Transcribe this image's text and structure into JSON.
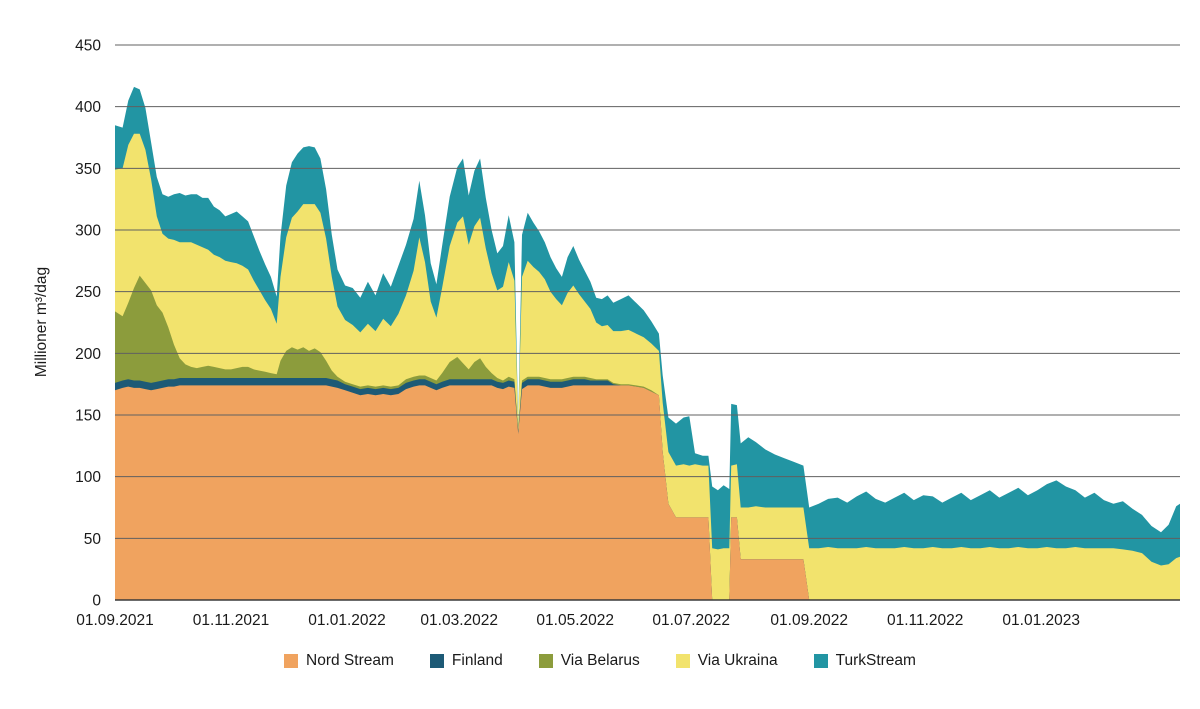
{
  "chart": {
    "y_axis_label": "Millioner m³/dag",
    "gridline_color": "#606060",
    "baseline_color": "#3a3a3a",
    "text_color": "#1a1a1a"
  },
  "chart_data": {
    "type": "area",
    "stacked": true,
    "title": "",
    "xlabel": "",
    "ylabel": "Millioner m³/dag",
    "ylim": [
      0,
      450
    ],
    "y_tick_step": 50,
    "grid": true,
    "legend_position": "bottom",
    "series_meta": [
      {
        "name": "Nord Stream",
        "color": "#f0a35f"
      },
      {
        "name": "Finland",
        "color": "#1d5a76"
      },
      {
        "name": "Via Belarus",
        "color": "#8c9c3c"
      },
      {
        "name": "Via Ukraina",
        "color": "#f2e36d"
      },
      {
        "name": "TurkStream",
        "color": "#2295a3"
      }
    ],
    "x_ticks": [
      {
        "date": "2021-09-01",
        "label": "01.09.2021"
      },
      {
        "date": "2021-11-01",
        "label": "01.11.2021"
      },
      {
        "date": "2022-01-01",
        "label": "01.01.2022"
      },
      {
        "date": "2022-03-01",
        "label": "01.03.2022"
      },
      {
        "date": "2022-05-01",
        "label": "01.05.2022"
      },
      {
        "date": "2022-07-01",
        "label": "01.07.2022"
      },
      {
        "date": "2022-09-01",
        "label": "01.09.2022"
      },
      {
        "date": "2022-11-01",
        "label": "01.11.2022"
      },
      {
        "date": "2023-01-01",
        "label": "01.01.2023"
      }
    ],
    "columns": [
      "date",
      "nord_stream",
      "finland",
      "via_belarus",
      "via_ukraina",
      "turkstream"
    ],
    "points": [
      [
        "2021-09-01",
        170,
        6,
        58,
        115,
        36
      ],
      [
        "2021-09-05",
        172,
        6,
        52,
        120,
        33
      ],
      [
        "2021-09-08",
        173,
        6,
        62,
        128,
        36
      ],
      [
        "2021-09-11",
        172,
        6,
        75,
        125,
        38
      ],
      [
        "2021-09-14",
        172,
        6,
        85,
        115,
        36
      ],
      [
        "2021-09-17",
        171,
        6,
        80,
        108,
        34
      ],
      [
        "2021-09-20",
        170,
        6,
        75,
        90,
        30
      ],
      [
        "2021-09-23",
        171,
        6,
        62,
        72,
        32
      ],
      [
        "2021-09-26",
        172,
        6,
        55,
        64,
        32
      ],
      [
        "2021-09-29",
        173,
        6,
        42,
        72,
        34
      ],
      [
        "2021-10-02",
        173,
        6,
        28,
        85,
        37
      ],
      [
        "2021-10-05",
        174,
        6,
        16,
        94,
        40
      ],
      [
        "2021-10-08",
        174,
        6,
        11,
        99,
        38
      ],
      [
        "2021-10-11",
        174,
        6,
        9,
        101,
        39
      ],
      [
        "2021-10-14",
        174,
        6,
        8,
        100,
        41
      ],
      [
        "2021-10-17",
        174,
        6,
        9,
        97,
        40
      ],
      [
        "2021-10-20",
        174,
        6,
        10,
        94,
        42
      ],
      [
        "2021-10-23",
        174,
        6,
        9,
        91,
        39
      ],
      [
        "2021-10-26",
        174,
        6,
        8,
        90,
        38
      ],
      [
        "2021-10-29",
        174,
        6,
        7,
        88,
        36
      ],
      [
        "2021-11-01",
        174,
        6,
        7,
        87,
        39
      ],
      [
        "2021-11-04",
        174,
        6,
        8,
        85,
        42
      ],
      [
        "2021-11-07",
        174,
        6,
        9,
        82,
        40
      ],
      [
        "2021-11-10",
        174,
        6,
        9,
        79,
        39
      ],
      [
        "2021-11-13",
        174,
        6,
        7,
        72,
        36
      ],
      [
        "2021-11-16",
        174,
        6,
        6,
        65,
        32
      ],
      [
        "2021-11-19",
        174,
        6,
        5,
        58,
        29
      ],
      [
        "2021-11-22",
        174,
        6,
        4,
        52,
        26
      ],
      [
        "2021-11-25",
        174,
        6,
        3,
        41,
        22
      ],
      [
        "2021-11-27",
        174,
        6,
        14,
        68,
        33
      ],
      [
        "2021-11-30",
        174,
        6,
        22,
        92,
        42
      ],
      [
        "2021-12-03",
        174,
        6,
        25,
        105,
        45
      ],
      [
        "2021-12-06",
        174,
        6,
        23,
        112,
        47
      ],
      [
        "2021-12-09",
        174,
        6,
        25,
        116,
        46
      ],
      [
        "2021-12-12",
        174,
        6,
        22,
        119,
        47
      ],
      [
        "2021-12-15",
        174,
        6,
        24,
        117,
        46
      ],
      [
        "2021-12-18",
        174,
        6,
        21,
        113,
        44
      ],
      [
        "2021-12-21",
        174,
        6,
        14,
        99,
        40
      ],
      [
        "2021-12-24",
        173,
        6,
        7,
        76,
        34
      ],
      [
        "2021-12-27",
        172,
        6,
        3,
        57,
        30
      ],
      [
        "2021-12-31",
        170,
        5,
        2,
        50,
        28
      ],
      [
        "2022-01-04",
        168,
        5,
        2,
        48,
        30
      ],
      [
        "2022-01-08",
        166,
        5,
        2,
        44,
        28
      ],
      [
        "2022-01-12",
        167,
        5,
        2,
        50,
        34
      ],
      [
        "2022-01-16",
        166,
        5,
        2,
        45,
        29
      ],
      [
        "2022-01-20",
        167,
        5,
        2,
        54,
        37
      ],
      [
        "2022-01-24",
        166,
        5,
        2,
        49,
        32
      ],
      [
        "2022-01-28",
        167,
        5,
        2,
        58,
        39
      ],
      [
        "2022-02-01",
        171,
        5,
        3,
        68,
        41
      ],
      [
        "2022-02-05",
        173,
        5,
        3,
        86,
        42
      ],
      [
        "2022-02-08",
        174,
        5,
        3,
        112,
        46
      ],
      [
        "2022-02-11",
        174,
        5,
        3,
        92,
        38
      ],
      [
        "2022-02-14",
        172,
        5,
        3,
        62,
        31
      ],
      [
        "2022-02-17",
        170,
        5,
        3,
        51,
        27
      ],
      [
        "2022-02-20",
        172,
        5,
        7,
        69,
        34
      ],
      [
        "2022-02-24",
        174,
        5,
        14,
        94,
        40
      ],
      [
        "2022-02-28",
        174,
        5,
        18,
        109,
        45
      ],
      [
        "2022-03-03",
        174,
        5,
        13,
        119,
        47
      ],
      [
        "2022-03-06",
        174,
        5,
        8,
        101,
        40
      ],
      [
        "2022-03-09",
        174,
        5,
        14,
        110,
        45
      ],
      [
        "2022-03-12",
        174,
        5,
        17,
        114,
        48
      ],
      [
        "2022-03-15",
        174,
        5,
        10,
        96,
        41
      ],
      [
        "2022-03-18",
        174,
        5,
        5,
        81,
        35
      ],
      [
        "2022-03-21",
        172,
        5,
        3,
        71,
        30
      ],
      [
        "2022-03-24",
        171,
        5,
        2,
        76,
        33
      ],
      [
        "2022-03-27",
        173,
        5,
        3,
        93,
        38
      ],
      [
        "2022-03-30",
        172,
        5,
        2,
        80,
        31
      ],
      [
        "2022-04-01",
        135,
        2,
        0,
        5,
        1
      ],
      [
        "2022-04-03",
        171,
        5,
        2,
        84,
        34
      ],
      [
        "2022-04-06",
        174,
        5,
        2,
        94,
        39
      ],
      [
        "2022-04-09",
        174,
        5,
        2,
        89,
        36
      ],
      [
        "2022-04-12",
        174,
        5,
        2,
        85,
        33
      ],
      [
        "2022-04-15",
        173,
        5,
        2,
        80,
        30
      ],
      [
        "2022-04-18",
        172,
        5,
        2,
        71,
        28
      ],
      [
        "2022-04-21",
        172,
        5,
        2,
        65,
        25
      ],
      [
        "2022-04-24",
        172,
        5,
        2,
        60,
        23
      ],
      [
        "2022-04-27",
        173,
        5,
        2,
        69,
        29
      ],
      [
        "2022-04-30",
        174,
        5,
        2,
        74,
        32
      ],
      [
        "2022-05-03",
        174,
        5,
        2,
        67,
        28
      ],
      [
        "2022-05-06",
        174,
        5,
        2,
        61,
        25
      ],
      [
        "2022-05-09",
        174,
        4,
        2,
        56,
        22
      ],
      [
        "2022-05-12",
        174,
        4,
        1,
        46,
        20
      ],
      [
        "2022-05-15",
        174,
        4,
        1,
        43,
        22
      ],
      [
        "2022-05-18",
        174,
        4,
        1,
        44,
        24
      ],
      [
        "2022-05-21",
        174,
        1,
        1,
        42,
        23
      ],
      [
        "2022-05-25",
        174,
        0,
        1,
        43,
        26
      ],
      [
        "2022-05-29",
        174,
        0,
        1,
        44,
        28
      ],
      [
        "2022-06-02",
        173,
        0,
        1,
        42,
        25
      ],
      [
        "2022-06-06",
        172,
        0,
        1,
        40,
        22
      ],
      [
        "2022-06-10",
        169,
        0,
        1,
        38,
        18
      ],
      [
        "2022-06-14",
        166,
        0,
        0,
        36,
        14
      ],
      [
        "2022-06-16",
        120,
        0,
        0,
        40,
        22
      ],
      [
        "2022-06-19",
        78,
        0,
        0,
        42,
        28
      ],
      [
        "2022-06-23",
        67,
        0,
        0,
        42,
        34
      ],
      [
        "2022-06-27",
        67,
        0,
        0,
        43,
        38
      ],
      [
        "2022-06-30",
        67,
        0,
        0,
        42,
        40
      ],
      [
        "2022-07-03",
        67,
        0,
        0,
        43,
        9
      ],
      [
        "2022-07-07",
        67,
        0,
        0,
        42,
        8
      ],
      [
        "2022-07-10",
        67,
        0,
        0,
        42,
        8
      ],
      [
        "2022-07-12",
        0,
        0,
        0,
        42,
        50
      ],
      [
        "2022-07-15",
        0,
        0,
        0,
        41,
        48
      ],
      [
        "2022-07-18",
        0,
        0,
        0,
        42,
        51
      ],
      [
        "2022-07-21",
        0,
        0,
        0,
        42,
        48
      ],
      [
        "2022-07-22",
        67,
        0,
        0,
        42,
        50
      ],
      [
        "2022-07-25",
        67,
        0,
        0,
        43,
        48
      ],
      [
        "2022-07-27",
        33,
        0,
        0,
        42,
        52
      ],
      [
        "2022-07-31",
        33,
        0,
        0,
        42,
        57
      ],
      [
        "2022-08-04",
        33,
        0,
        0,
        43,
        52
      ],
      [
        "2022-08-09",
        33,
        0,
        0,
        42,
        47
      ],
      [
        "2022-08-14",
        33,
        0,
        0,
        42,
        43
      ],
      [
        "2022-08-19",
        33,
        0,
        0,
        42,
        40
      ],
      [
        "2022-08-24",
        33,
        0,
        0,
        42,
        37
      ],
      [
        "2022-08-29",
        33,
        0,
        0,
        42,
        34
      ],
      [
        "2022-09-01",
        0,
        0,
        0,
        42,
        33
      ],
      [
        "2022-09-06",
        0,
        0,
        0,
        42,
        36
      ],
      [
        "2022-09-11",
        0,
        0,
        0,
        43,
        39
      ],
      [
        "2022-09-16",
        0,
        0,
        0,
        42,
        41
      ],
      [
        "2022-09-21",
        0,
        0,
        0,
        42,
        37
      ],
      [
        "2022-09-26",
        0,
        0,
        0,
        42,
        42
      ],
      [
        "2022-10-01",
        0,
        0,
        0,
        43,
        45
      ],
      [
        "2022-10-06",
        0,
        0,
        0,
        42,
        40
      ],
      [
        "2022-10-11",
        0,
        0,
        0,
        42,
        37
      ],
      [
        "2022-10-16",
        0,
        0,
        0,
        42,
        41
      ],
      [
        "2022-10-21",
        0,
        0,
        0,
        43,
        44
      ],
      [
        "2022-10-26",
        0,
        0,
        0,
        42,
        39
      ],
      [
        "2022-10-31",
        0,
        0,
        0,
        42,
        43
      ],
      [
        "2022-11-05",
        0,
        0,
        0,
        43,
        41
      ],
      [
        "2022-11-10",
        0,
        0,
        0,
        42,
        37
      ],
      [
        "2022-11-15",
        0,
        0,
        0,
        42,
        41
      ],
      [
        "2022-11-20",
        0,
        0,
        0,
        43,
        44
      ],
      [
        "2022-11-25",
        0,
        0,
        0,
        42,
        39
      ],
      [
        "2022-11-30",
        0,
        0,
        0,
        42,
        43
      ],
      [
        "2022-12-05",
        0,
        0,
        0,
        43,
        46
      ],
      [
        "2022-12-10",
        0,
        0,
        0,
        42,
        41
      ],
      [
        "2022-12-15",
        0,
        0,
        0,
        42,
        45
      ],
      [
        "2022-12-20",
        0,
        0,
        0,
        43,
        48
      ],
      [
        "2022-12-25",
        0,
        0,
        0,
        42,
        43
      ],
      [
        "2022-12-30",
        0,
        0,
        0,
        42,
        47
      ],
      [
        "2023-01-04",
        0,
        0,
        0,
        43,
        51
      ],
      [
        "2023-01-09",
        0,
        0,
        0,
        42,
        55
      ],
      [
        "2023-01-14",
        0,
        0,
        0,
        42,
        50
      ],
      [
        "2023-01-19",
        0,
        0,
        0,
        43,
        46
      ],
      [
        "2023-01-24",
        0,
        0,
        0,
        42,
        41
      ],
      [
        "2023-01-29",
        0,
        0,
        0,
        42,
        45
      ],
      [
        "2023-02-03",
        0,
        0,
        0,
        42,
        39
      ],
      [
        "2023-02-08",
        0,
        0,
        0,
        42,
        36
      ],
      [
        "2023-02-13",
        0,
        0,
        0,
        41,
        39
      ],
      [
        "2023-02-18",
        0,
        0,
        0,
        40,
        34
      ],
      [
        "2023-02-23",
        0,
        0,
        0,
        38,
        31
      ],
      [
        "2023-02-28",
        0,
        0,
        0,
        31,
        29
      ],
      [
        "2023-03-05",
        0,
        0,
        0,
        28,
        27
      ],
      [
        "2023-03-09",
        0,
        0,
        0,
        29,
        32
      ],
      [
        "2023-03-13",
        0,
        0,
        0,
        34,
        42
      ],
      [
        "2023-03-15",
        0,
        0,
        0,
        35,
        43
      ]
    ]
  }
}
